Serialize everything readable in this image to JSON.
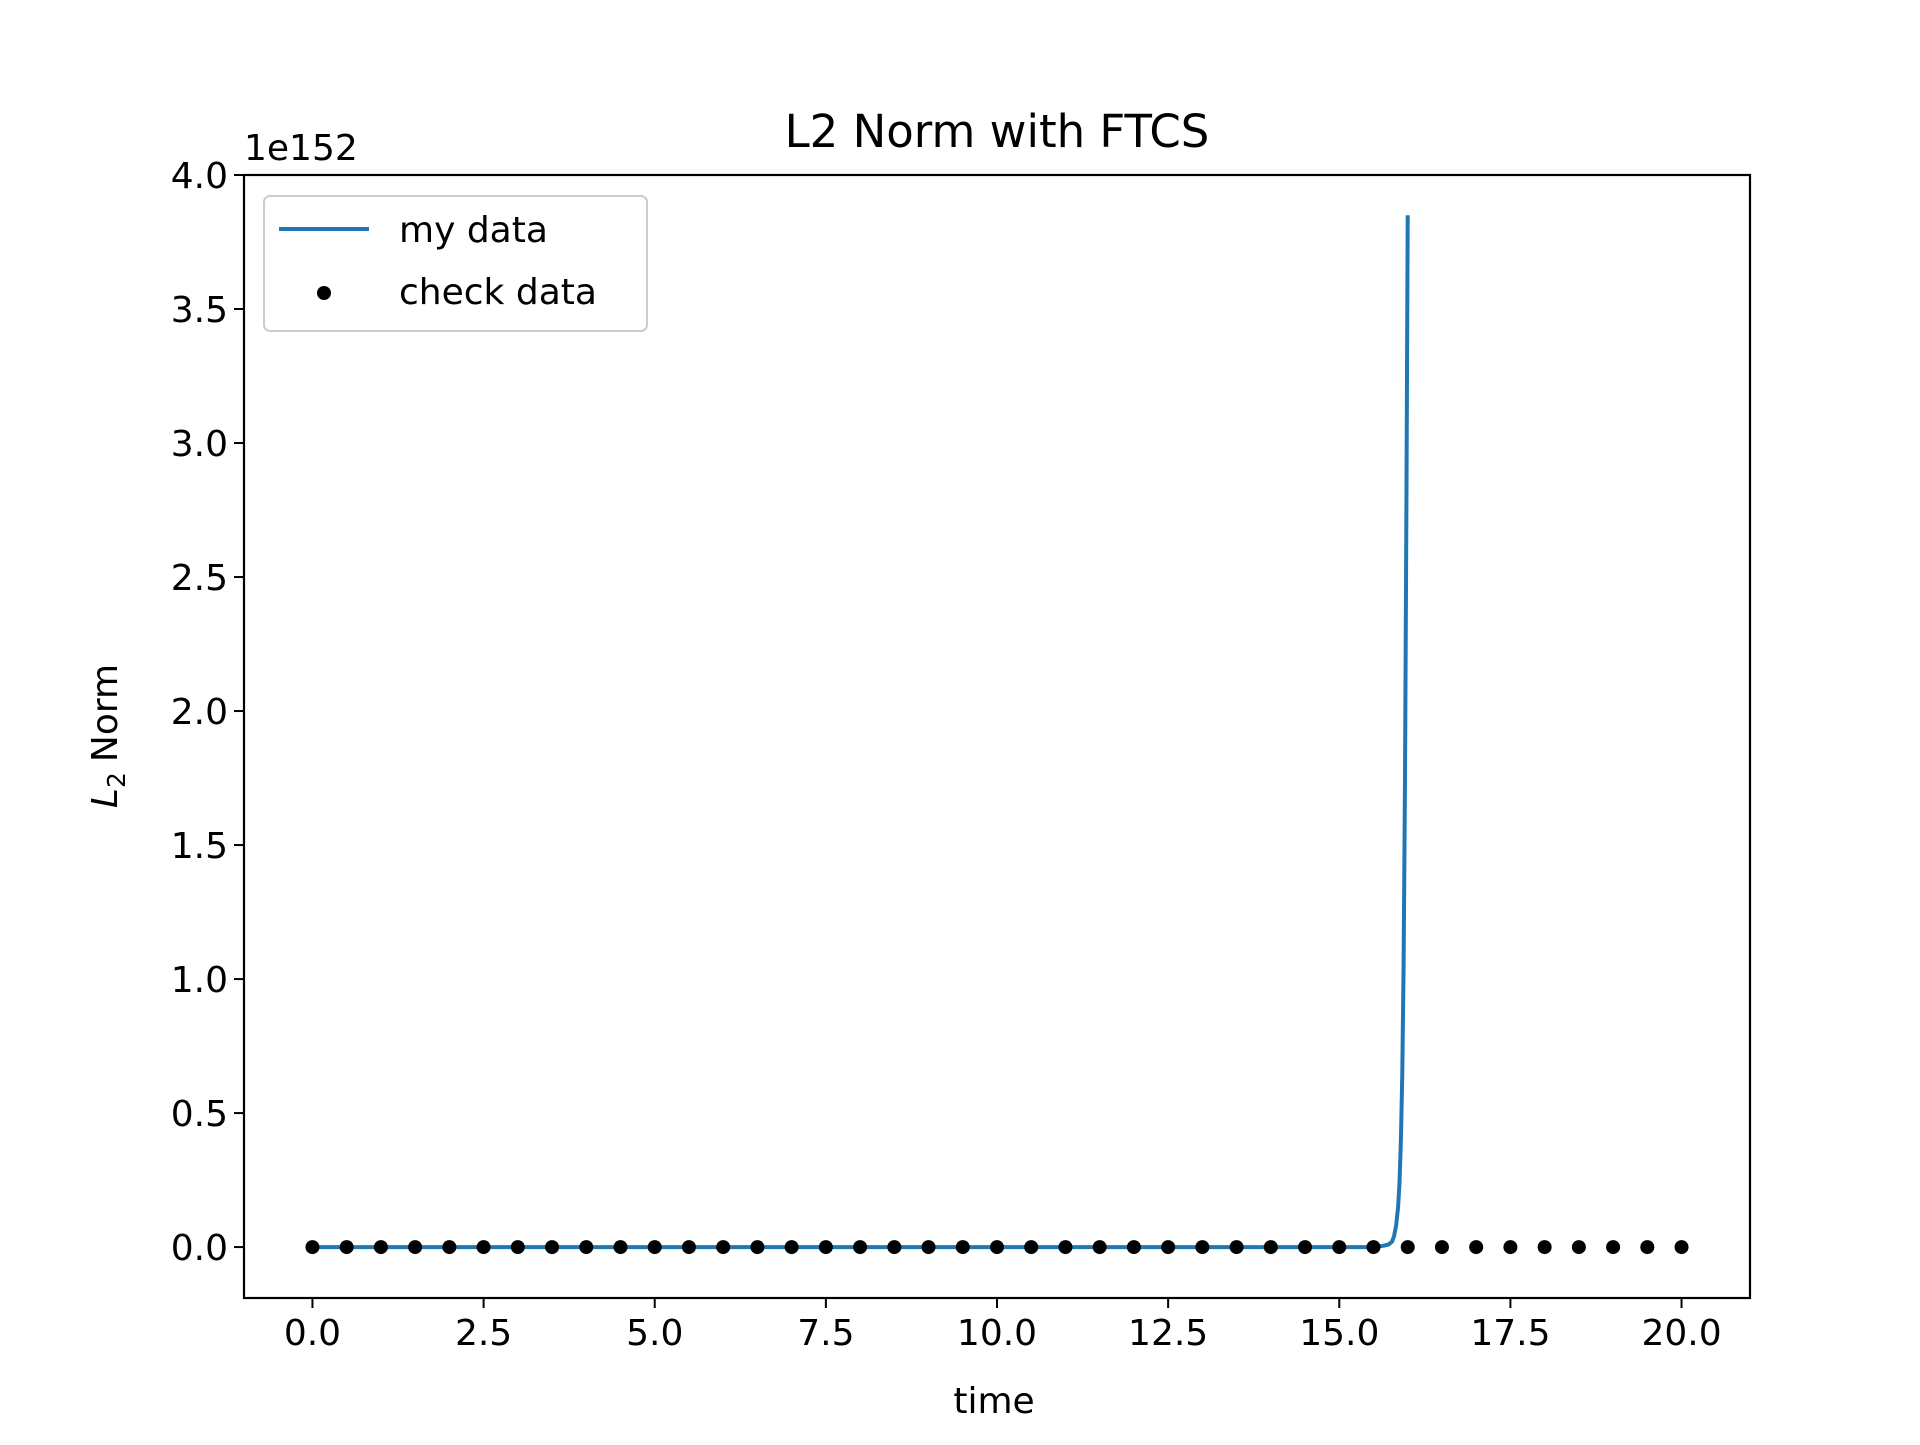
{
  "chart_data": {
    "type": "line",
    "title": "L2 Norm with FTCS",
    "xlabel": "time",
    "ylabel": "L",
    "ylabel_subscript": "2",
    "ylabel_suffix": "Norm",
    "y_offset_label": "1e152",
    "xlim": [
      -1.0,
      21.0
    ],
    "ylim": [
      -0.19,
      4.0
    ],
    "x_ticks": [
      0.0,
      2.5,
      5.0,
      7.5,
      10.0,
      12.5,
      15.0,
      17.5,
      20.0
    ],
    "x_tick_labels": [
      "0.0",
      "2.5",
      "5.0",
      "7.5",
      "10.0",
      "12.5",
      "15.0",
      "17.5",
      "20.0"
    ],
    "y_ticks": [
      0.0,
      0.5,
      1.0,
      1.5,
      2.0,
      2.5,
      3.0,
      3.5,
      4.0
    ],
    "y_tick_labels": [
      "0.0",
      "0.5",
      "1.0",
      "1.5",
      "2.0",
      "2.5",
      "3.0",
      "3.5",
      "4.0"
    ],
    "grid": false,
    "legend_position": "top-left",
    "series": [
      {
        "name": "my data",
        "style": "line",
        "color": "#1f77b4",
        "x": [
          0.0,
          15.0,
          15.5,
          15.65,
          15.72,
          15.77,
          15.8,
          15.83,
          15.86,
          15.88,
          15.9,
          15.92,
          15.94,
          15.96,
          15.98,
          16.0
        ],
        "y": [
          0.0,
          0.0,
          0.0,
          0.005,
          0.01,
          0.02,
          0.04,
          0.08,
          0.15,
          0.24,
          0.4,
          0.65,
          1.05,
          1.75,
          2.75,
          3.85
        ]
      },
      {
        "name": "check data",
        "style": "scatter",
        "color": "#000000",
        "x": [
          0.0,
          0.5,
          1.0,
          1.5,
          2.0,
          2.5,
          3.0,
          3.5,
          4.0,
          4.5,
          5.0,
          5.5,
          6.0,
          6.5,
          7.0,
          7.5,
          8.0,
          8.5,
          9.0,
          9.5,
          10.0,
          10.5,
          11.0,
          11.5,
          12.0,
          12.5,
          13.0,
          13.5,
          14.0,
          14.5,
          15.0,
          15.5,
          16.0,
          16.5,
          17.0,
          17.5,
          18.0,
          18.5,
          19.0,
          19.5,
          20.0
        ],
        "y": [
          0,
          0,
          0,
          0,
          0,
          0,
          0,
          0,
          0,
          0,
          0,
          0,
          0,
          0,
          0,
          0,
          0,
          0,
          0,
          0,
          0,
          0,
          0,
          0,
          0,
          0,
          0,
          0,
          0,
          0,
          0,
          0,
          0,
          0,
          0,
          0,
          0,
          0,
          0,
          0,
          0
        ]
      }
    ]
  }
}
